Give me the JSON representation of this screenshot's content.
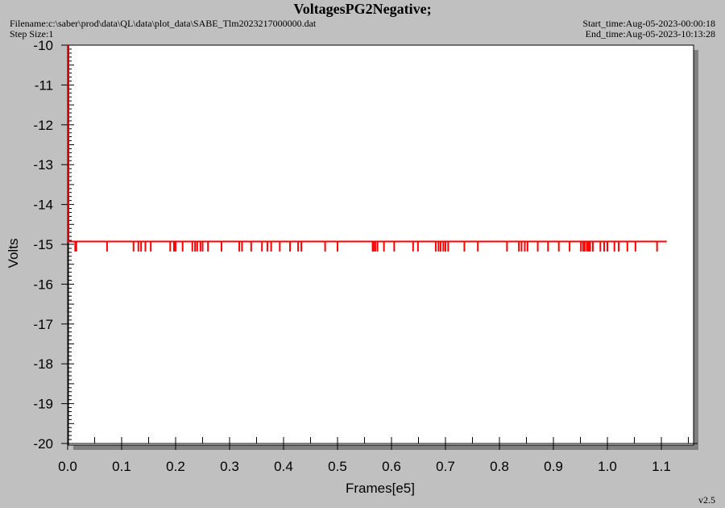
{
  "header": {
    "title": "VoltagesPG2Negative;",
    "filename": "Filename:c:\\saber\\prod\\data\\QL\\data\\plot_data\\SABE_Tlm2023217000000.dat",
    "step_size": "Step Size:1",
    "start_time": "Start_time:Aug-05-2023-00:00:18",
    "end_time": "End_time:Aug-05-2023-10:13:28"
  },
  "footer": {
    "version": "v2.5"
  },
  "colors": {
    "series": "#ff0000",
    "axis": "#cc0000",
    "plot_bg": "#ffffff",
    "page_bg": "#c0c0c0"
  },
  "chart_data": {
    "type": "line",
    "xlabel": "Frames[e5]",
    "ylabel": "Volts",
    "xlim": [
      0,
      1.11
    ],
    "ylim": [
      -20,
      -10
    ],
    "x_ticks": [
      "0.0",
      "0.1",
      "0.2",
      "0.3",
      "0.4",
      "0.5",
      "0.6",
      "0.7",
      "0.8",
      "0.9",
      "1.0",
      "1.1"
    ],
    "y_ticks": [
      "-10",
      "-11",
      "-12",
      "-13",
      "-14",
      "-15",
      "-16",
      "-17",
      "-18",
      "-19",
      "-20"
    ],
    "grid": false,
    "series": [
      {
        "baseline": -14.93,
        "x_range": [
          0,
          1.11
        ],
        "dip_value": -15.18,
        "dip_x": [
          0.014,
          0.016,
          0.073,
          0.122,
          0.131,
          0.136,
          0.144,
          0.154,
          0.19,
          0.197,
          0.2,
          0.213,
          0.231,
          0.236,
          0.24,
          0.246,
          0.25,
          0.26,
          0.285,
          0.318,
          0.323,
          0.34,
          0.36,
          0.37,
          0.377,
          0.393,
          0.412,
          0.427,
          0.433,
          0.477,
          0.5,
          0.565,
          0.567,
          0.57,
          0.574,
          0.586,
          0.605,
          0.64,
          0.649,
          0.682,
          0.687,
          0.691,
          0.696,
          0.7,
          0.705,
          0.735,
          0.76,
          0.814,
          0.836,
          0.841,
          0.847,
          0.852,
          0.871,
          0.89,
          0.91,
          0.93,
          0.951,
          0.955,
          0.958,
          0.962,
          0.965,
          0.968,
          0.973,
          0.987,
          0.994,
          1.0,
          1.013,
          1.021,
          1.037,
          1.052,
          1.092
        ]
      }
    ]
  }
}
